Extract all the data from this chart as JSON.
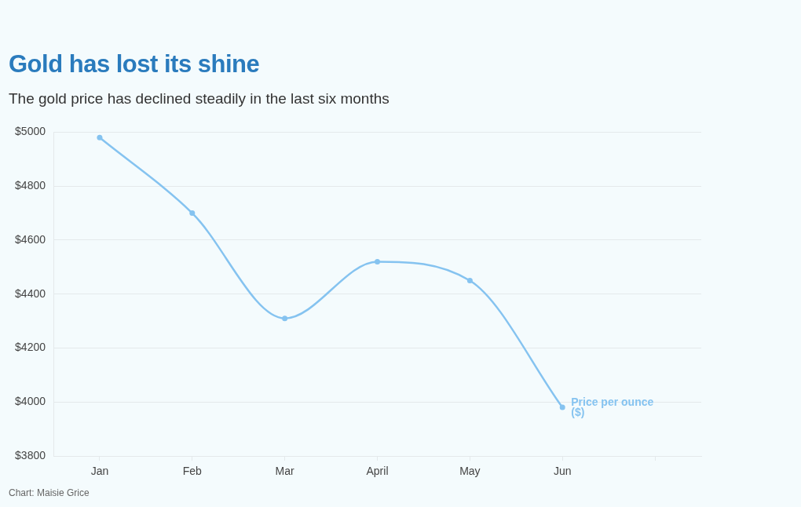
{
  "chart_data": {
    "type": "line",
    "title": "Gold has lost its shine",
    "subtitle": "The gold price has declined steadily in the last six months",
    "annotations": [
      "Chart: Maisie Grice"
    ],
    "categories": [
      "Jan",
      "Feb",
      "Mar",
      "April",
      "May",
      "Jun",
      null
    ],
    "series": [
      {
        "name": "Price per ounce ($)",
        "color": "#85c3f0",
        "values": [
          4980,
          4700,
          4310,
          4520,
          4450,
          3980,
          null
        ]
      }
    ],
    "ylim": [
      3800,
      5000
    ],
    "yticks": [
      {
        "value": 3800,
        "label": "$3800"
      },
      {
        "value": 4000,
        "label": "$4000"
      },
      {
        "value": 4200,
        "label": "$4200"
      },
      {
        "value": 4400,
        "label": "$4400"
      },
      {
        "value": 4600,
        "label": "$4600"
      },
      {
        "value": 4800,
        "label": "$4800"
      },
      {
        "value": 5000,
        "label": "$5000"
      }
    ],
    "grid": "y",
    "marker": "circle",
    "line_style": "solid"
  }
}
